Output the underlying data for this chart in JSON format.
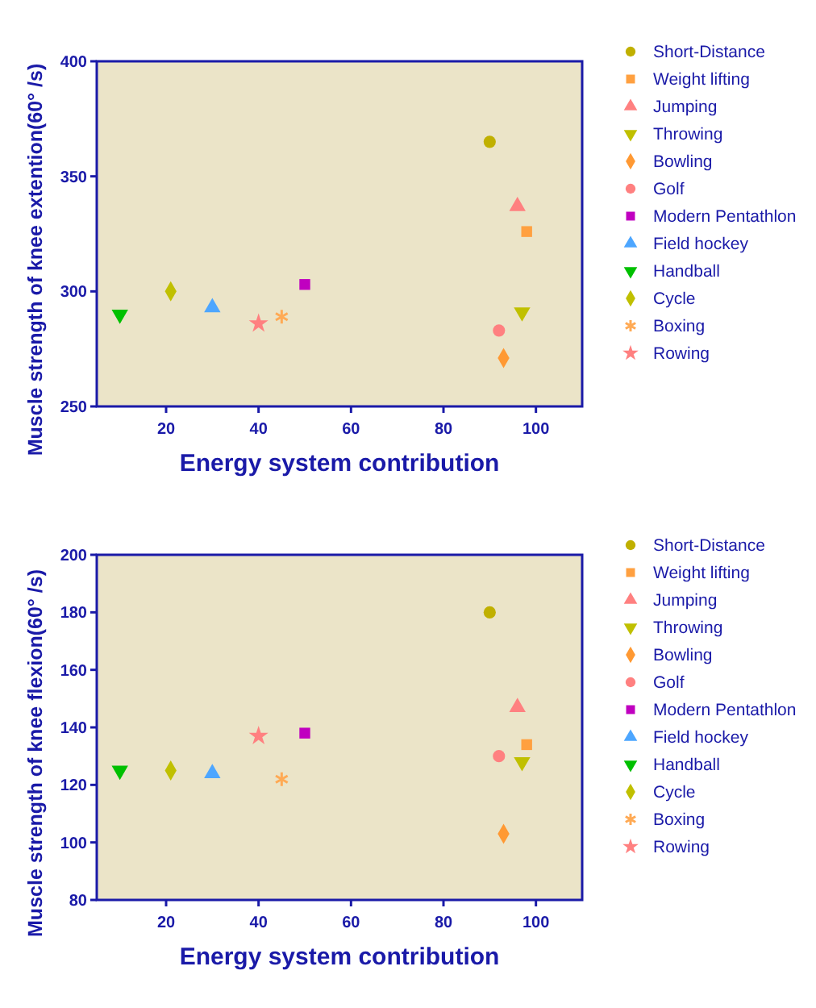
{
  "chart_data": [
    {
      "type": "scatter",
      "ylabel": "Muscle strength of knee extention(60°  /s)",
      "xlabel": "Energy system contribution",
      "xlim": [
        5,
        110
      ],
      "xticks": [
        20,
        40,
        60,
        80,
        100
      ],
      "ylim": [
        250,
        400
      ],
      "yticks": [
        250,
        300,
        350,
        400
      ],
      "legend": "right",
      "grid": false,
      "series": [
        {
          "name": "Short-Distance",
          "color": "#c0b000",
          "marker": "circle",
          "x": [
            90
          ],
          "values": [
            365
          ]
        },
        {
          "name": "Weight lifting",
          "color": "#ffa040",
          "marker": "square",
          "x": [
            98
          ],
          "values": [
            326
          ]
        },
        {
          "name": "Jumping",
          "color": "#ff8080",
          "marker": "triangle",
          "x": [
            96
          ],
          "values": [
            337
          ]
        },
        {
          "name": "Throwing",
          "color": "#c0c000",
          "marker": "triangle-down",
          "x": [
            97
          ],
          "values": [
            291
          ]
        },
        {
          "name": "Bowling",
          "color": "#ff9933",
          "marker": "diamond",
          "x": [
            93
          ],
          "values": [
            271
          ]
        },
        {
          "name": "Golf",
          "color": "#ff8080",
          "marker": "circle",
          "x": [
            92
          ],
          "values": [
            283
          ]
        },
        {
          "name": "Modern Pentathlon",
          "color": "#c000c0",
          "marker": "square",
          "x": [
            50
          ],
          "values": [
            303
          ]
        },
        {
          "name": "Field hockey",
          "color": "#4da6ff",
          "marker": "triangle",
          "x": [
            30
          ],
          "values": [
            293
          ]
        },
        {
          "name": "Handball",
          "color": "#00c000",
          "marker": "triangle-down",
          "x": [
            10
          ],
          "values": [
            290
          ]
        },
        {
          "name": "Cycle",
          "color": "#c0c000",
          "marker": "diamond",
          "x": [
            21
          ],
          "values": [
            300
          ]
        },
        {
          "name": "Boxing",
          "color": "#ffaa55",
          "marker": "cross",
          "x": [
            45
          ],
          "values": [
            289
          ]
        },
        {
          "name": "Rowing",
          "color": "#ff8080",
          "marker": "star",
          "x": [
            40
          ],
          "values": [
            286
          ]
        }
      ]
    },
    {
      "type": "scatter",
      "ylabel": "Muscle strength of knee flexion(60°  /s)",
      "xlabel": "Energy system contribution",
      "xlim": [
        5,
        110
      ],
      "xticks": [
        20,
        40,
        60,
        80,
        100
      ],
      "ylim": [
        80,
        200
      ],
      "yticks": [
        80,
        100,
        120,
        140,
        160,
        180,
        200
      ],
      "legend": "right",
      "grid": false,
      "series": [
        {
          "name": "Short-Distance",
          "color": "#c0b000",
          "marker": "circle",
          "x": [
            90
          ],
          "values": [
            180
          ]
        },
        {
          "name": "Weight lifting",
          "color": "#ffa040",
          "marker": "square",
          "x": [
            98
          ],
          "values": [
            134
          ]
        },
        {
          "name": "Jumping",
          "color": "#ff8080",
          "marker": "triangle",
          "x": [
            96
          ],
          "values": [
            147
          ]
        },
        {
          "name": "Throwing",
          "color": "#c0c000",
          "marker": "triangle-down",
          "x": [
            97
          ],
          "values": [
            128
          ]
        },
        {
          "name": "Bowling",
          "color": "#ff9933",
          "marker": "diamond",
          "x": [
            93
          ],
          "values": [
            103
          ]
        },
        {
          "name": "Golf",
          "color": "#ff8080",
          "marker": "circle",
          "x": [
            92
          ],
          "values": [
            130
          ]
        },
        {
          "name": "Modern Pentathlon",
          "color": "#c000c0",
          "marker": "square",
          "x": [
            50
          ],
          "values": [
            138
          ]
        },
        {
          "name": "Field hockey",
          "color": "#4da6ff",
          "marker": "triangle",
          "x": [
            30
          ],
          "values": [
            124
          ]
        },
        {
          "name": "Handball",
          "color": "#00c000",
          "marker": "triangle-down",
          "x": [
            10
          ],
          "values": [
            125
          ]
        },
        {
          "name": "Cycle",
          "color": "#c0c000",
          "marker": "diamond",
          "x": [
            21
          ],
          "values": [
            125
          ]
        },
        {
          "name": "Boxing",
          "color": "#ffaa55",
          "marker": "cross",
          "x": [
            45
          ],
          "values": [
            122
          ]
        },
        {
          "name": "Rowing",
          "color": "#ff8080",
          "marker": "star",
          "x": [
            40
          ],
          "values": [
            137
          ]
        }
      ]
    }
  ]
}
